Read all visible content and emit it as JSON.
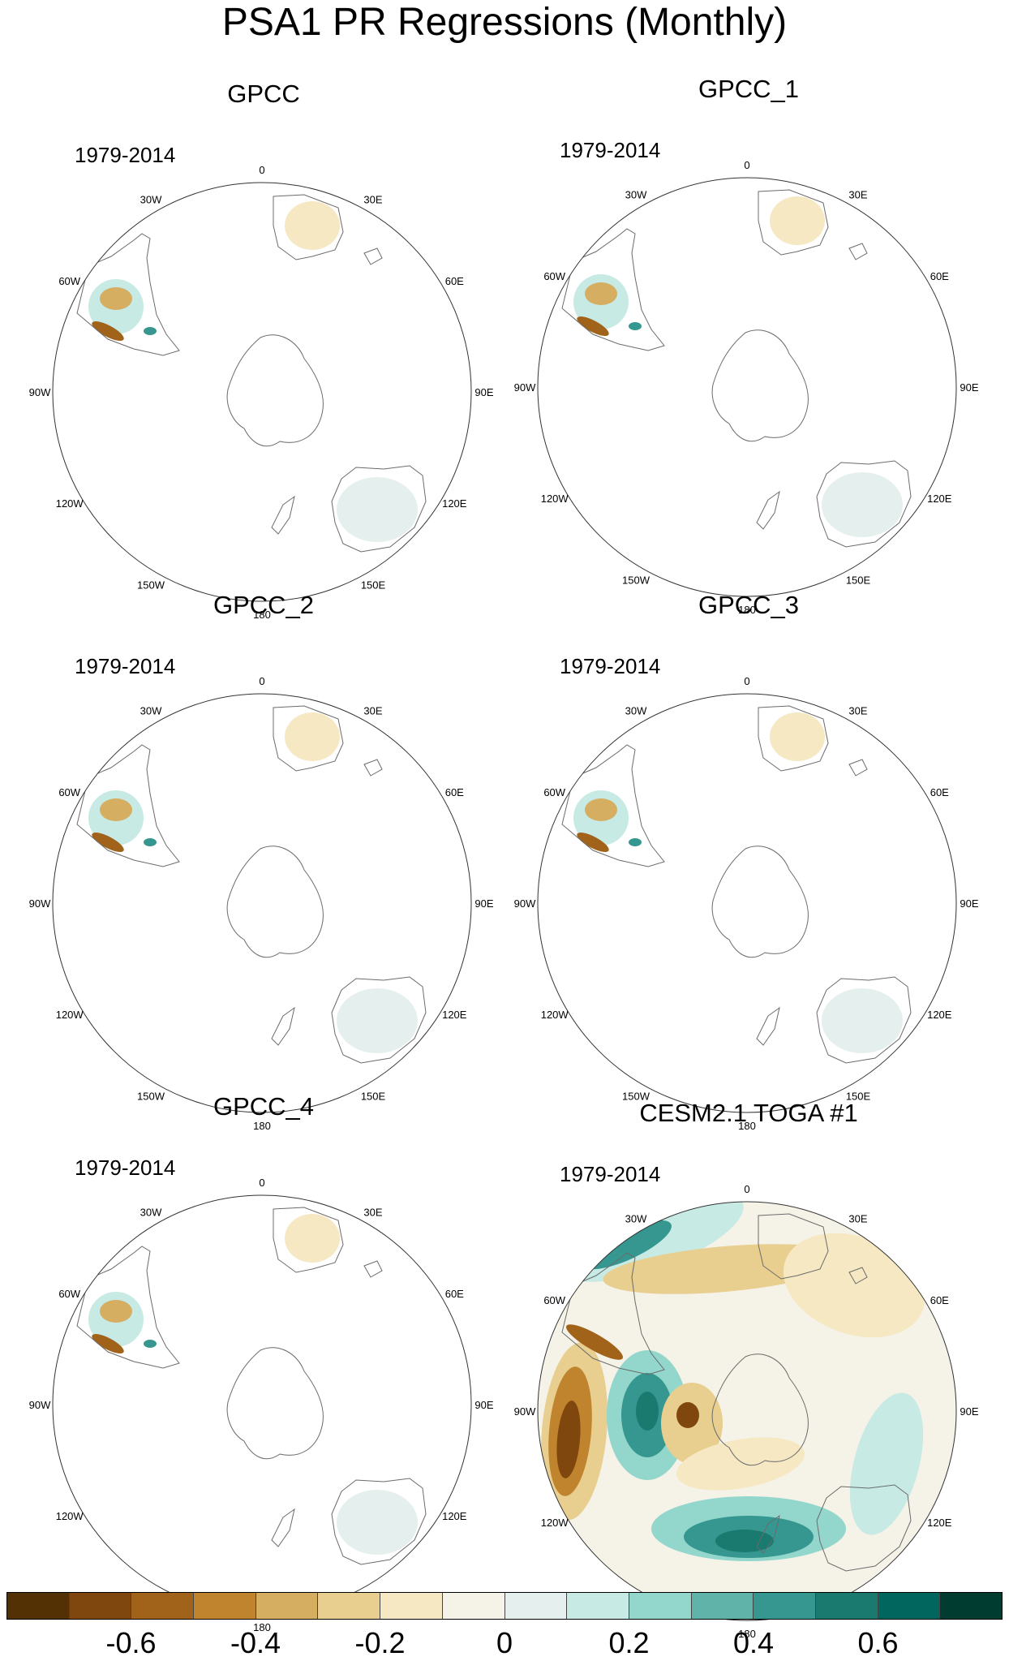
{
  "chart_data": {
    "type": "heatmap",
    "title": "PSA1 PR Regressions (Monthly)",
    "projection": "south polar stereographic",
    "period": "1979-2014",
    "longitude_labels": [
      "0",
      "30E",
      "60E",
      "90E",
      "120E",
      "150E",
      "180",
      "150W",
      "120W",
      "90W",
      "60W",
      "30W"
    ],
    "panels": [
      {
        "title": "GPCC",
        "period": "1979-2014"
      },
      {
        "title": "GPCC_1",
        "period": "1979-2014"
      },
      {
        "title": "GPCC_2",
        "period": "1979-2014"
      },
      {
        "title": "GPCC_3",
        "period": "1979-2014"
      },
      {
        "title": "GPCC_4",
        "period": "1979-2014"
      },
      {
        "title": "CESM2.1 TOGA #1",
        "period": "1979-2014"
      }
    ],
    "colorbar": {
      "levels": [
        -0.7,
        -0.6,
        -0.5,
        -0.4,
        -0.3,
        -0.2,
        -0.1,
        0,
        0.1,
        0.2,
        0.3,
        0.4,
        0.5,
        0.6,
        0.7
      ],
      "tick_labels": [
        {
          "value": -0.6,
          "label": "-0.6"
        },
        {
          "value": -0.4,
          "label": "-0.4"
        },
        {
          "value": -0.2,
          "label": "-0.2"
        },
        {
          "value": 0,
          "label": "0"
        },
        {
          "value": 0.2,
          "label": "0.2"
        },
        {
          "value": 0.4,
          "label": "0.4"
        },
        {
          "value": 0.6,
          "label": "0.6"
        }
      ],
      "colors": [
        "#543005",
        "#7f470e",
        "#a1631a",
        "#c0842f",
        "#d5ae61",
        "#e8cf90",
        "#f5e8c3",
        "#f5f2e8",
        "#e5f0ee",
        "#c7eae5",
        "#92d6cc",
        "#5fb3a8",
        "#35978f",
        "#1a7a70",
        "#01665e",
        "#003c30"
      ]
    }
  }
}
